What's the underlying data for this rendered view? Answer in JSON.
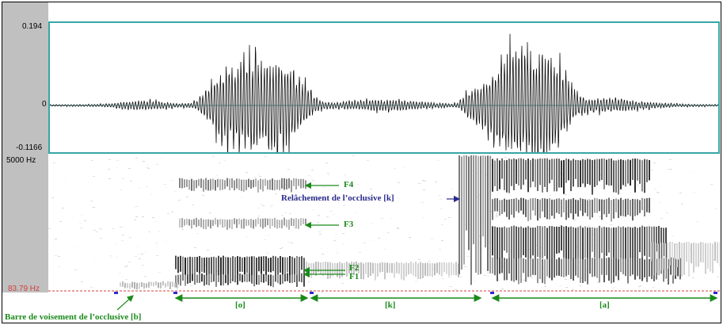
{
  "waveform": {
    "y_max_label": "0.194",
    "y_zero_label": "0",
    "y_min_label": "-0.1166"
  },
  "spectrogram": {
    "y_top_label": "5000 Hz",
    "y_bottom_label": "83.79 Hz"
  },
  "annotations": {
    "f4": "F4",
    "f3": "F3",
    "f2": "F2",
    "f1": "F1",
    "release": "Relâchement de l’occlusive [k]",
    "voicing_bar": "Barre de voisement de l’occlusive [b]"
  },
  "segments": [
    {
      "label": "[o]"
    },
    {
      "label": "[k]"
    },
    {
      "label": "[a]"
    }
  ],
  "colors": {
    "waveform_border": "#39a6a6",
    "annotation_green": "#1a8a1a",
    "annotation_blue": "#2b2b8c",
    "cursor_line": "#d04040",
    "bottom_axis_label": "#d04040"
  }
}
